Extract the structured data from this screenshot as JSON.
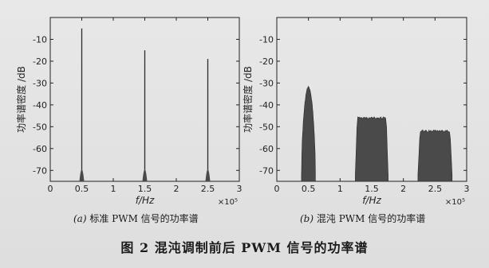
{
  "chart_data": [
    {
      "type": "line",
      "ylabel": "功率谱密度 /dB",
      "xlabel": "f/Hz",
      "x_exponent": "×10⁵",
      "xlim": [
        0,
        3
      ],
      "ylim": [
        -75,
        0
      ],
      "xticks": [
        "0",
        "0.5",
        "1",
        "1.5",
        "2",
        "2.5",
        "3"
      ],
      "yticks": [
        "-10",
        "-20",
        "-30",
        "-40",
        "-50",
        "-60",
        "-70"
      ],
      "peaks": [
        {
          "x": 0.5,
          "y": -5
        },
        {
          "x": 1.5,
          "y": -15
        },
        {
          "x": 2.5,
          "y": -19
        }
      ],
      "caption_label": "(a)",
      "caption_text": "标准 PWM 信号的功率谱"
    },
    {
      "type": "area",
      "ylabel": "功率谱密度 /dB",
      "xlabel": "f/Hz",
      "x_exponent": "×10⁵",
      "xlim": [
        0,
        3
      ],
      "ylim": [
        -75,
        0
      ],
      "xticks": [
        "0",
        "0.5",
        "1",
        "1.5",
        "2",
        "2.5",
        "3"
      ],
      "yticks": [
        "-10",
        "-20",
        "-30",
        "-40",
        "-50",
        "-60",
        "-70"
      ],
      "bands": [
        {
          "x_start": 0.39,
          "x_end": 0.61,
          "top_db": -32
        },
        {
          "x_start": 1.24,
          "x_end": 1.76,
          "top_db": -46
        },
        {
          "x_start": 2.23,
          "x_end": 2.77,
          "top_db": -52
        }
      ],
      "caption_label": "(b)",
      "caption_text": "混沌 PWM 信号的功率谱"
    }
  ],
  "figure_caption": "图 2  混沌调制前后 PWM 信号的功率谱",
  "colors": {
    "line": "#2b2b2b",
    "fill": "#4a4a4a",
    "axis": "#222222"
  }
}
